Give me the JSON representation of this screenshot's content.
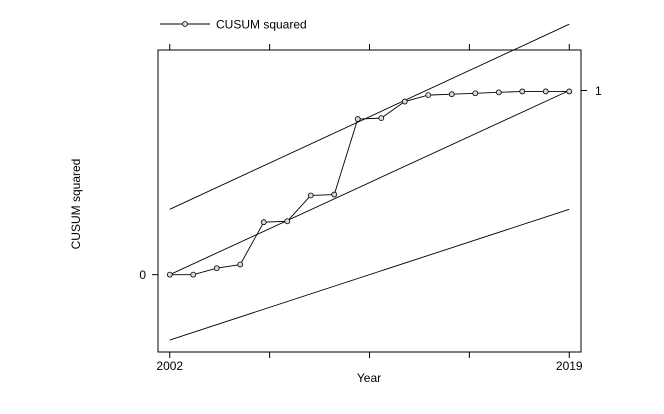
{
  "chart_data": {
    "type": "line",
    "title": "",
    "xlabel": "Year",
    "ylabel": "CUSUM squared",
    "xlim": [
      2001.5,
      2019.5
    ],
    "ylim": [
      -0.42,
      1.22
    ],
    "x_ticks_labeled": [
      {
        "value": 2002,
        "label": "2002"
      },
      {
        "value": 2019,
        "label": "2019"
      }
    ],
    "x_ticks_unlabeled": [
      2006.25,
      2010.5,
      2014.75
    ],
    "y_ticks_left": [
      {
        "value": 0,
        "label": "0"
      }
    ],
    "y_ticks_right": [
      {
        "value": 1,
        "label": "1"
      }
    ],
    "legend": {
      "position": "top-left",
      "entries": [
        "CUSUM squared"
      ]
    },
    "grid": false,
    "series": [
      {
        "name": "CUSUM squared",
        "marker": "circle",
        "x": [
          2002,
          2003,
          2004,
          2005,
          2006,
          2007,
          2008,
          2009,
          2010,
          2011,
          2012,
          2013,
          2014,
          2015,
          2016,
          2017,
          2018,
          2019
        ],
        "y": [
          0.0,
          0.0,
          0.035,
          0.055,
          0.285,
          0.29,
          0.43,
          0.435,
          0.845,
          0.85,
          0.94,
          0.975,
          0.98,
          0.985,
          0.99,
          0.995,
          0.995,
          0.995
        ]
      }
    ],
    "reference_lines": [
      {
        "role": "upper-bound",
        "x": [
          2002,
          2019
        ],
        "y": [
          0.355,
          1.36
        ]
      },
      {
        "role": "expected",
        "x": [
          2002,
          2019
        ],
        "y": [
          0.0,
          1.0
        ]
      },
      {
        "role": "lower-bound",
        "x": [
          2002,
          2019
        ],
        "y": [
          -0.355,
          0.355
        ]
      }
    ]
  }
}
